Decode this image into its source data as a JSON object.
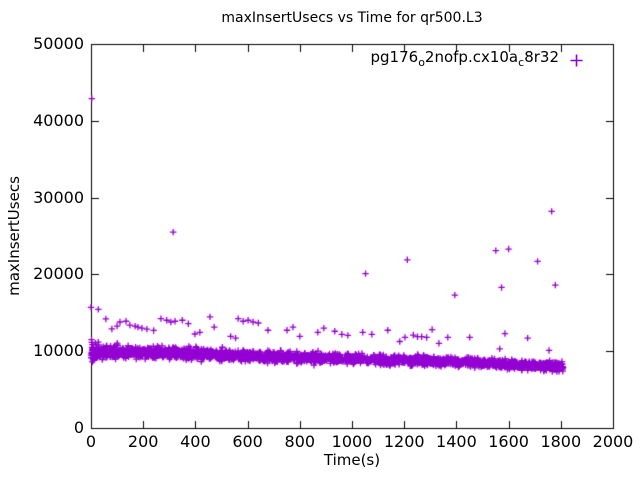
{
  "colors": {
    "marker": "#9400D3",
    "axis": "#000000",
    "background": "#ffffff"
  },
  "chart_data": {
    "type": "scatter",
    "title": "maxInsertUsecs vs Time for qr500.L3",
    "xlabel": "Time(s)",
    "ylabel": "maxInsertUsecs",
    "xlim": [
      0,
      2000
    ],
    "ylim": [
      0,
      50000
    ],
    "xticks": [
      0,
      200,
      400,
      600,
      800,
      1000,
      1200,
      1400,
      1600,
      1800,
      2000
    ],
    "yticks": [
      0,
      10000,
      20000,
      30000,
      40000,
      50000
    ],
    "grid": false,
    "legend": {
      "position": "top-right-inside",
      "entries": [
        {
          "label_plain": "pg176_o2nofp.cx10a_c8r32",
          "label_segments": [
            {
              "text": "pg176",
              "sub": false
            },
            {
              "text": "o",
              "sub": true
            },
            {
              "text": "2nofp.cx10a",
              "sub": false
            },
            {
              "text": "c",
              "sub": true
            },
            {
              "text": "8r32",
              "sub": false
            }
          ],
          "marker": "plus",
          "color": "#9400D3"
        }
      ]
    },
    "series": [
      {
        "name": "pg176_o2nofp.cx10a_c8r32",
        "marker": "plus",
        "color": "#9400D3",
        "outlier_points": [
          [
            3,
            42900
          ],
          [
            315,
            25500
          ],
          [
            1052,
            20100
          ],
          [
            1212,
            21900
          ],
          [
            1394,
            17300
          ],
          [
            1551,
            23100
          ],
          [
            1600,
            23300
          ],
          [
            1711,
            21700
          ],
          [
            1765,
            28200
          ],
          [
            1573,
            18300
          ],
          [
            1779,
            18600
          ]
        ],
        "scatter_points": [
          [
            0,
            15700
          ],
          [
            28,
            15450
          ],
          [
            2,
            11500
          ],
          [
            3,
            11150
          ],
          [
            5,
            10850
          ],
          [
            4,
            10500
          ],
          [
            6,
            10150
          ],
          [
            8,
            9850
          ],
          [
            2,
            9450
          ],
          [
            7,
            9150
          ],
          [
            9,
            8900
          ],
          [
            5,
            8600
          ],
          [
            57,
            14200
          ],
          [
            80,
            12900
          ],
          [
            100,
            13270
          ],
          [
            111,
            13800
          ],
          [
            134,
            13900
          ],
          [
            149,
            13400
          ],
          [
            169,
            13270
          ],
          [
            180,
            13130
          ],
          [
            195,
            13000
          ],
          [
            214,
            12870
          ],
          [
            240,
            12700
          ],
          [
            268,
            14240
          ],
          [
            290,
            14030
          ],
          [
            306,
            13800
          ],
          [
            322,
            13900
          ],
          [
            350,
            14030
          ],
          [
            373,
            13580
          ],
          [
            398,
            12240
          ],
          [
            417,
            12460
          ],
          [
            456,
            14470
          ],
          [
            472,
            13130
          ],
          [
            535,
            11930
          ],
          [
            554,
            11700
          ],
          [
            564,
            14240
          ],
          [
            583,
            13900
          ],
          [
            602,
            14030
          ],
          [
            621,
            13800
          ],
          [
            641,
            13670
          ],
          [
            678,
            12730
          ],
          [
            751,
            12730
          ],
          [
            774,
            13130
          ],
          [
            800,
            11930
          ],
          [
            869,
            12460
          ],
          [
            892,
            13000
          ],
          [
            934,
            12600
          ],
          [
            961,
            12200
          ],
          [
            984,
            12060
          ],
          [
            1041,
            12460
          ],
          [
            1076,
            12200
          ],
          [
            1137,
            12730
          ],
          [
            1183,
            11260
          ],
          [
            1203,
            11800
          ],
          [
            1235,
            12100
          ],
          [
            1251,
            11890
          ],
          [
            1267,
            11890
          ],
          [
            1286,
            11790
          ],
          [
            1307,
            12820
          ],
          [
            1333,
            11030
          ],
          [
            1367,
            11800
          ],
          [
            1451,
            11800
          ],
          [
            1566,
            10300
          ],
          [
            1586,
            12300
          ],
          [
            1673,
            11700
          ],
          [
            1755,
            10100
          ]
        ],
        "dense_band": {
          "description": "dense noisy band of per-second max insert latency, slowly declining",
          "count": 2200,
          "seed": 11,
          "t_range": [
            0,
            1810
          ],
          "trend_t_mean_spread": [
            [
              0,
              10000,
              1500
            ],
            [
              150,
              9900,
              1200
            ],
            [
              400,
              9650,
              1100
            ],
            [
              800,
              9150,
              1000
            ],
            [
              1200,
              8850,
              900
            ],
            [
              1500,
              8450,
              850
            ],
            [
              1700,
              8150,
              850
            ],
            [
              1810,
              7950,
              850
            ]
          ]
        }
      }
    ]
  }
}
